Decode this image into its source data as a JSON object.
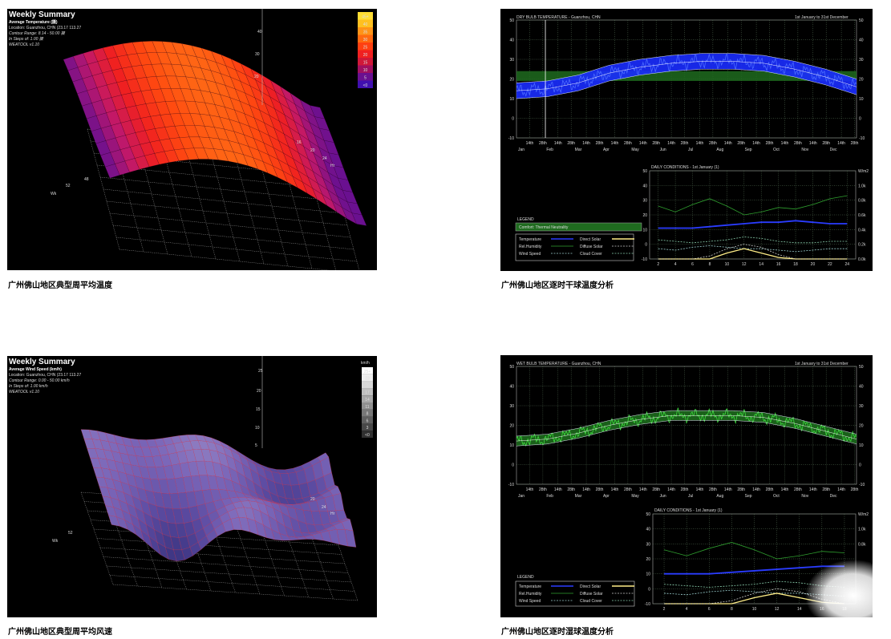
{
  "captions": {
    "top_left": "广州佛山地区典型周平均温度",
    "top_right": "广州佛山地区逐时干球温度分析",
    "bottom_left": "广州佛山地区典型周平均风速",
    "bottom_right": "广州佛山地区逐时湿球温度分析"
  },
  "panels": {
    "temp_surface": {
      "title": "Weekly Summary",
      "subtitle": "Average Temperature (摄)",
      "lines": [
        "Location: Guanzhou, CHN (23.17 113.27",
        "Contour Range: 8.14 - 50.00 摄",
        "In Steps of: 1.00 摄",
        "WEATOOL v1.10"
      ],
      "scale_ticks": [
        "45+",
        "40",
        "35",
        "30",
        "25",
        "20",
        "15",
        "10",
        "5",
        "<0"
      ],
      "scale_colors": [
        "#ffdd33",
        "#ffc020",
        "#ff9418",
        "#ff6a10",
        "#ff4010",
        "#f02020",
        "#d01838",
        "#a01060",
        "#6a1090",
        "#4010b0"
      ],
      "axis_z_ticks": [
        "40",
        "30",
        "20"
      ],
      "axis_labels": {
        "wk": "Wk",
        "hr": "Hr",
        "n52": "52",
        "n48": "48",
        "n24": "24",
        "n20": "20",
        "n16": "16"
      }
    },
    "wind_surface": {
      "title": "Weekly Summary",
      "subtitle": "Average Wind Speed (km/h)",
      "lines": [
        "Location: Guanzhou, CHN (23.17 113.27",
        "Contour Range: 0.00 - 50.00 km/h",
        "In Steps of: 1.00 km/h",
        "WEATOOL v1.10"
      ],
      "scale_unit": "km/h",
      "scale_ticks": [
        "25+",
        "23",
        "20",
        "17",
        "14",
        "11",
        "8",
        "6",
        "3",
        "<0"
      ],
      "scale_colors": [
        "#ffffff",
        "#eeeeee",
        "#d8d8d8",
        "#c0c0c0",
        "#a8a8a8",
        "#909090",
        "#787878",
        "#606060",
        "#484848",
        "#303030"
      ],
      "axis_z_ticks": [
        "25",
        "20",
        "15",
        "10",
        "5"
      ],
      "axis_labels": {
        "wk": "Wk",
        "hr": "Hr",
        "n52": "52",
        "n24": "24",
        "n20": "20"
      }
    },
    "dry_bulb": {
      "title": "DRY BULB TEMPERATURE - Guanzhou, CHN",
      "period": "1st January to 31st December",
      "legend_title": "LEGEND",
      "comfort_label": "Comfort: Thermal Neutrality",
      "legend_items": [
        "Temperature",
        "Rel.Humidity",
        "Wind Speed",
        "Direct Solar",
        "Diffuse Solar",
        "Cloud Cover"
      ],
      "daily_title": "DAILY CONDITIONS - 1st January (1)",
      "daily_unit": "W/m2"
    },
    "wet_bulb": {
      "title": "WET BULB TEMPERATURE - Guanzhou, CHN",
      "period": "1st January to 31st December",
      "legend_title": "LEGEND",
      "legend_items": [
        "Temperature",
        "Rel.Humidity",
        "Wind Speed",
        "Direct Solar",
        "Diffuse Solar",
        "Cloud Cover"
      ],
      "daily_title": "DAILY CONDITIONS - 1st January (1)",
      "daily_unit": "W/m2"
    }
  },
  "chart_data": [
    {
      "type": "line",
      "title": "DRY BULB TEMPERATURE - Guanzhou, CHN",
      "subtitle": "1st January to 31st December",
      "categories": [
        "Jan",
        "Feb",
        "Mar",
        "Apr",
        "May",
        "Jun",
        "Jul",
        "Aug",
        "Sep",
        "Oct",
        "Nov",
        "Dec"
      ],
      "minor_ticks": [
        "14th",
        "28th"
      ],
      "ylim": [
        -10,
        50
      ],
      "yticks": [
        "50",
        "40",
        "30",
        "20",
        "10",
        "0",
        "-10"
      ],
      "series": [
        {
          "values": [
            14,
            15,
            18,
            23,
            26,
            28,
            29,
            29,
            28,
            25,
            21,
            16
          ]
        }
      ],
      "comfort_band": [
        19,
        24
      ],
      "grid": true,
      "colors": {
        "temperature": "#1a2cff",
        "comfort": "#1f6b1f",
        "grid": "#6a8a6a"
      }
    },
    {
      "type": "line",
      "title": "DAILY CONDITIONS - 1st January (1)",
      "x": [
        "2",
        "4",
        "6",
        "8",
        "10",
        "12",
        "14",
        "16",
        "18",
        "20",
        "22",
        "24"
      ],
      "ylim": [
        -10,
        50
      ],
      "yticks": [
        "50",
        "40",
        "30",
        "20",
        "10",
        "0",
        "-10"
      ],
      "y2ticks": [
        "W/m2",
        "1.0k",
        "0.8k",
        "0.6k",
        "0.4k",
        "0.2k",
        "0.0k"
      ],
      "series": [
        {
          "name": "Temperature",
          "values": [
            11,
            11,
            11,
            12,
            13,
            14,
            15,
            15,
            16,
            15,
            14,
            14
          ]
        },
        {
          "name": "Rel.Humidity",
          "values": [
            26,
            22,
            27,
            31,
            26,
            20,
            22,
            25,
            24,
            27,
            31,
            33
          ]
        },
        {
          "name": "Wind Speed",
          "values": [
            -3,
            -4,
            -2,
            -1,
            -2,
            -3,
            -3,
            -4,
            -5,
            -4,
            -3,
            -3
          ]
        },
        {
          "name": "Direct Solar",
          "values": [
            -10,
            -10,
            -10,
            -10,
            -6,
            -3,
            -6,
            -9,
            -10,
            -10,
            -10,
            -10
          ]
        },
        {
          "name": "Diffuse Solar",
          "values": [
            -10,
            -10,
            -10,
            -8,
            -3,
            0,
            -2,
            -7,
            -10,
            -10,
            -10,
            -10
          ]
        },
        {
          "name": "Cloud Cover",
          "values": [
            3,
            2,
            1,
            2,
            3,
            5,
            4,
            2,
            1,
            1,
            2,
            2
          ]
        }
      ],
      "colors": {
        "Temperature": "#2a3cff",
        "Rel.Humidity": "#2fa02f",
        "Wind Speed": "#9cc",
        "Direct Solar": "#ffee88",
        "Diffuse Solar": "#ccc",
        "Cloud Cover": "#8ca"
      }
    },
    {
      "type": "line",
      "title": "WET BULB TEMPERATURE - Guanzhou, CHN",
      "subtitle": "1st January to 31st December",
      "categories": [
        "Jan",
        "Feb",
        "Mar",
        "Apr",
        "May",
        "Jun",
        "Jul",
        "Aug",
        "Sep",
        "Oct",
        "Nov",
        "Dec"
      ],
      "minor_ticks": [
        "14th",
        "28th"
      ],
      "ylim": [
        -10,
        50
      ],
      "yticks": [
        "50",
        "40",
        "30",
        "20",
        "10",
        "0",
        "-10"
      ],
      "series": [
        {
          "values": [
            12,
            13,
            16,
            20,
            23,
            25,
            25,
            25,
            24,
            21,
            17,
            13
          ]
        }
      ],
      "grid": true,
      "colors": {
        "temperature": "#2fc02f",
        "grid": "#6a8a6a"
      }
    },
    {
      "type": "line",
      "title": "DAILY CONDITIONS - 1st January (1)",
      "x": [
        "2",
        "4",
        "6",
        "8",
        "10",
        "12",
        "14",
        "16",
        "18"
      ],
      "ylim": [
        -10,
        50
      ],
      "yticks": [
        "50",
        "40",
        "30",
        "20",
        "10",
        "0",
        "-10"
      ],
      "y2ticks": [
        "W/m2",
        "1.0k",
        "0.8k"
      ],
      "series": [
        {
          "name": "Temperature",
          "values": [
            10,
            10,
            10,
            11,
            12,
            13,
            14,
            15,
            15
          ]
        },
        {
          "name": "Rel.Humidity",
          "values": [
            26,
            22,
            27,
            31,
            26,
            20,
            22,
            25,
            24
          ]
        },
        {
          "name": "Wind Speed",
          "values": [
            -3,
            -4,
            -2,
            -1,
            -2,
            -3,
            -3,
            -4,
            -5
          ]
        },
        {
          "name": "Direct Solar",
          "values": [
            -10,
            -10,
            -10,
            -10,
            -6,
            -3,
            -6,
            -9,
            -10
          ]
        },
        {
          "name": "Diffuse Solar",
          "values": [
            -10,
            -10,
            -10,
            -8,
            -3,
            0,
            -2,
            -7,
            -10
          ]
        },
        {
          "name": "Cloud Cover",
          "values": [
            3,
            2,
            1,
            2,
            3,
            5,
            4,
            2,
            1
          ]
        }
      ],
      "colors": {
        "Temperature": "#2a3cff",
        "Rel.Humidity": "#2fa02f",
        "Wind Speed": "#9cc",
        "Direct Solar": "#ffee88",
        "Diffuse Solar": "#ccc",
        "Cloud Cover": "#8ca"
      }
    }
  ]
}
